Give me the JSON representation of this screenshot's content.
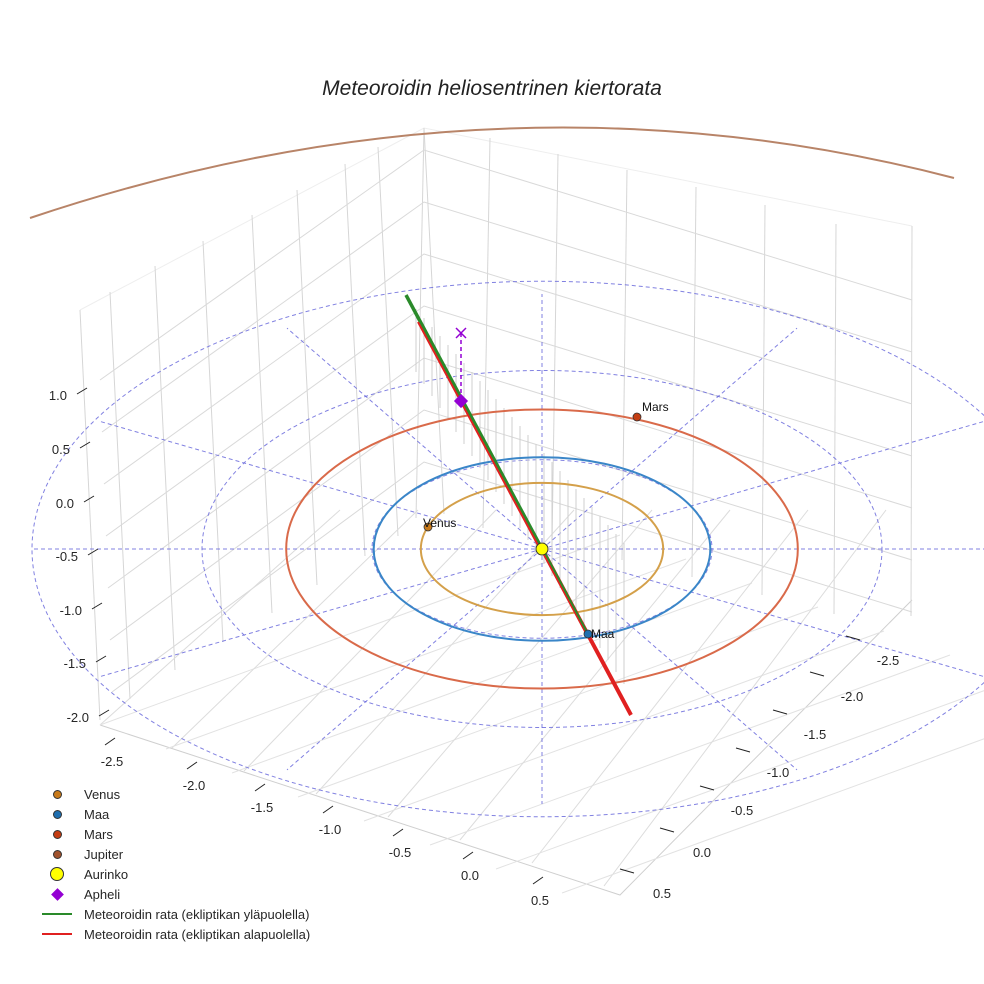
{
  "chart_data": {
    "type": "scatter3d",
    "title": "Meteoroidin heliosentrinen kiertorata",
    "axes": {
      "x": {
        "ticks": [
          "-2.5",
          "-2.0",
          "-1.5",
          "-1.0",
          "-0.5",
          "0.0",
          "0.5"
        ],
        "range": [
          -2.8,
          0.8
        ]
      },
      "y": {
        "ticks": [
          "-2.5",
          "-2.0",
          "-1.5",
          "-1.0",
          "-0.5",
          "0.0",
          "0.5"
        ],
        "range": [
          -2.8,
          0.8
        ]
      },
      "z": {
        "ticks": [
          "1.0",
          "0.5",
          "0.0",
          "-0.5",
          "-1.0",
          "-1.5",
          "-2.0"
        ],
        "range": [
          -2.2,
          1.3
        ]
      },
      "grid": true
    },
    "orbits": [
      {
        "name": "Venus",
        "radius_au": 0.72,
        "color": "#d4a04a"
      },
      {
        "name": "Maa",
        "radius_au": 1.0,
        "color": "#3a86c8"
      },
      {
        "name": "Mars",
        "radius_au": 1.52,
        "color": "#d96a4a"
      },
      {
        "name": "Jupiter",
        "radius_au": 5.2,
        "color": "#b88468"
      }
    ],
    "reference_rings_au": [
      1.0,
      2.0,
      3.0
    ],
    "reference_ring_color": "#6b6bdc",
    "planets": [
      {
        "name": "Venus",
        "label": "Venus",
        "angle_deg": 165,
        "color": "#c87a1a"
      },
      {
        "name": "Maa",
        "label": "Maa",
        "angle_deg": 290,
        "color": "#1f6fb0"
      },
      {
        "name": "Mars",
        "label": "Mars",
        "angle_deg": 70,
        "color": "#c43d12"
      }
    ],
    "sun": {
      "label": "Aurinko",
      "color": "#ffff00"
    },
    "meteoroid": {
      "above_color": "#2a8a2a",
      "below_color": "#e02020",
      "start": [
        -1.4,
        1.15,
        1.2
      ],
      "end": [
        0.75,
        -0.6,
        -1.05
      ]
    },
    "apheli": {
      "color": "#9400d3",
      "position": [
        -1.0,
        0.95,
        0.5
      ],
      "projection_z": 1.05
    }
  },
  "legend": [
    {
      "label": "Venus",
      "type": "dot",
      "color": "#c87a1a"
    },
    {
      "label": "Maa",
      "type": "dot",
      "color": "#1f6fb0"
    },
    {
      "label": "Mars",
      "type": "dot",
      "color": "#c43d12"
    },
    {
      "label": "Jupiter",
      "type": "dot",
      "color": "#a0522d"
    },
    {
      "label": "Aurinko",
      "type": "dot-big",
      "color": "#ffff00"
    },
    {
      "label": "Apheli",
      "type": "diamond",
      "color": "#9400d3"
    },
    {
      "label": "Meteoroidin rata (ekliptikan yläpuolella)",
      "type": "line",
      "color": "#2a8a2a"
    },
    {
      "label": "Meteoroidin rata (ekliptikan alapuolella)",
      "type": "line",
      "color": "#e02020"
    }
  ]
}
